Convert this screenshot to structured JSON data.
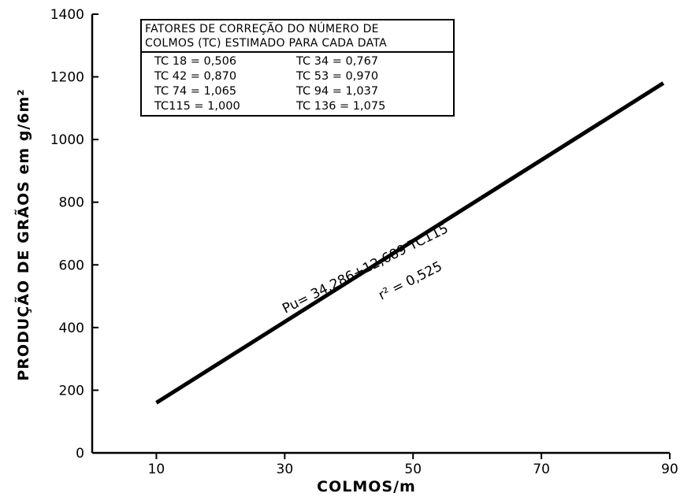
{
  "chart_data": {
    "type": "line",
    "title": "",
    "xlabel": "COLMOS/m",
    "ylabel": "PRODUÇÃO DE GRÃOS em g/6m²",
    "xlim": [
      0,
      90
    ],
    "ylim": [
      0,
      1400
    ],
    "x_ticks": [
      "10",
      "30",
      "50",
      "70",
      "90"
    ],
    "y_ticks": [
      "0",
      "200",
      "400",
      "600",
      "800",
      "1000",
      "1200",
      "1400"
    ],
    "grid": false,
    "series": [
      {
        "x": [
          10,
          89
        ],
        "y": [
          160,
          1180
        ]
      }
    ],
    "annotations": {
      "equation": "Pu= 34,286+12,689  TC115",
      "r_squared": "r² = 0,525"
    },
    "legend_table": {
      "header_line1": "FATORES DE CORREÇÃO DO NÚMERO DE",
      "header_line2": "COLMOS (TC) ESTIMADO PARA CADA DATA",
      "rows": [
        [
          "TC 18 = 0,506",
          "TC 34 = 0,767"
        ],
        [
          "TC 42 = 0,870",
          "TC 53 = 0,970"
        ],
        [
          "TC 74 = 1,065",
          "TC 94 = 1,037"
        ],
        [
          "TC115 = 1,000",
          "TC 136 = 1,075"
        ]
      ]
    }
  }
}
